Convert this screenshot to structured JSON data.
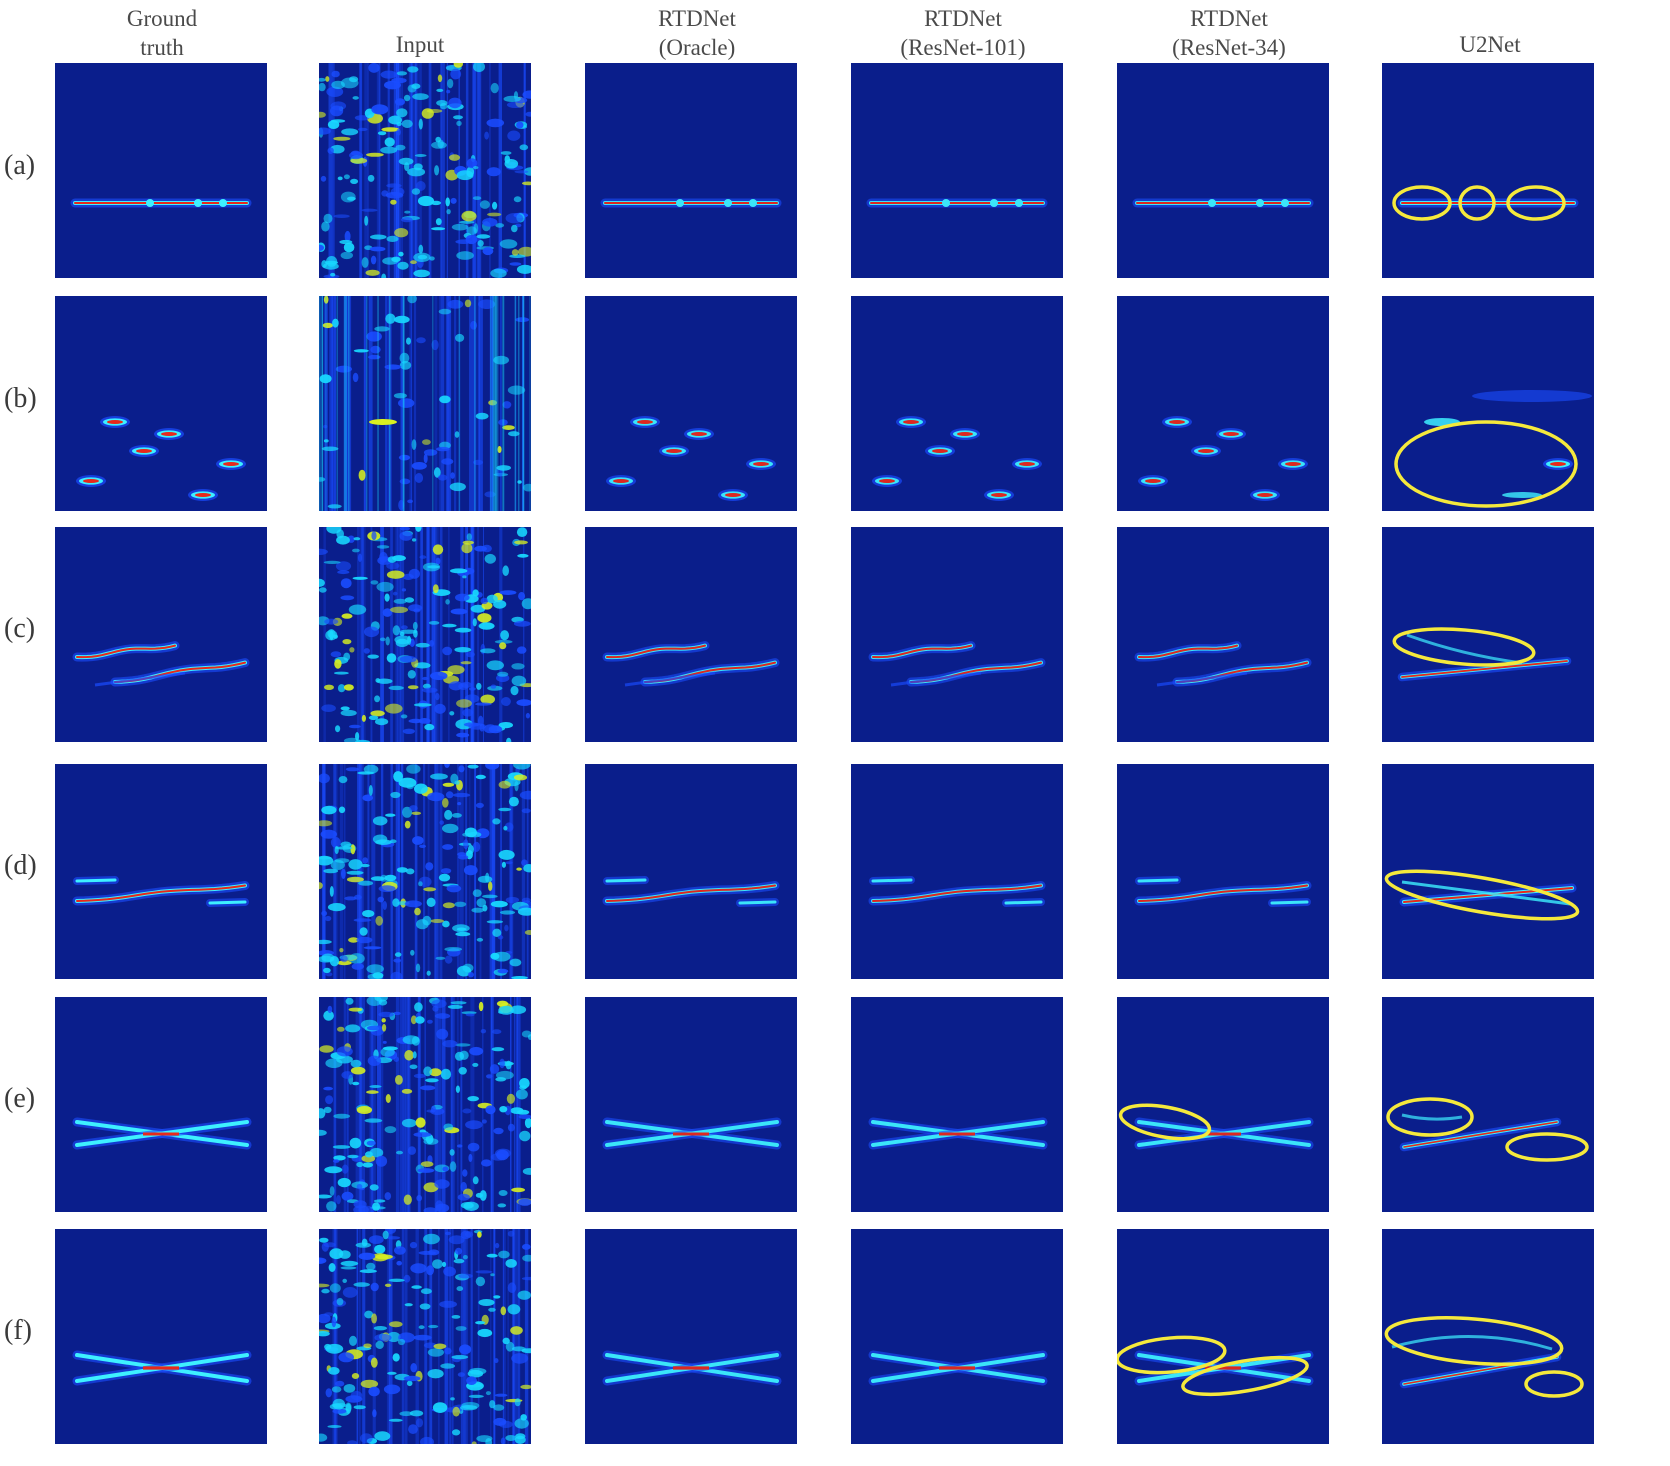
{
  "figure": {
    "columns": [
      {
        "key": "gt",
        "lines": [
          "Ground",
          "truth"
        ]
      },
      {
        "key": "input",
        "lines": [
          "Input"
        ]
      },
      {
        "key": "oracle",
        "lines": [
          "RTDNet",
          "(Oracle)"
        ]
      },
      {
        "key": "r101",
        "lines": [
          "RTDNet",
          "(ResNet-101)"
        ]
      },
      {
        "key": "r34",
        "lines": [
          "RTDNet",
          "(ResNet-34)"
        ]
      },
      {
        "key": "u2net",
        "lines": [
          "U2Net"
        ]
      }
    ],
    "rows": [
      {
        "label": "(a)"
      },
      {
        "label": "(b)"
      },
      {
        "label": "(c)"
      },
      {
        "label": "(d)"
      },
      {
        "label": "(e)"
      },
      {
        "label": "(f)"
      }
    ],
    "colors": {
      "background": "#0a1e8c",
      "noise_blue": "#1a4cff",
      "noise_cyan": "#18d8ff",
      "noise_yellow": "#d8f020",
      "track_cyan": "#3ef0ff",
      "track_red": "#e8281a",
      "highlight_ellipse": "#f5e93c"
    }
  }
}
